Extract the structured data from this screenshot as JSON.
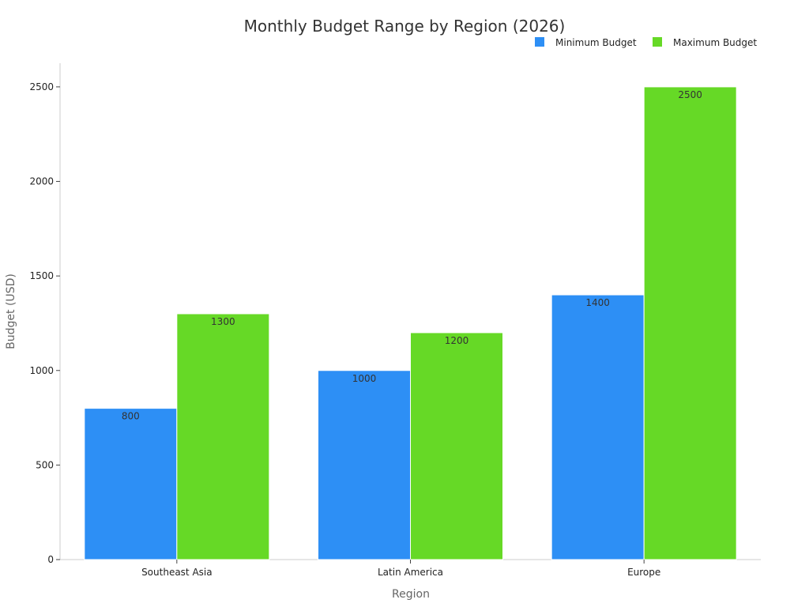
{
  "chart_data": {
    "type": "bar",
    "title": "Monthly Budget Range by Region (2026)",
    "xlabel": "Region",
    "ylabel": "Budget (USD)",
    "categories": [
      "Southeast Asia",
      "Latin America",
      "Europe"
    ],
    "series": [
      {
        "name": "Minimum Budget",
        "values": [
          800,
          1000,
          1400
        ],
        "color": "#2d8ff5"
      },
      {
        "name": "Maximum Budget",
        "values": [
          1300,
          1200,
          2500
        ],
        "color": "#66d926"
      }
    ],
    "ylim": [
      0,
      2625
    ],
    "yticks": [
      0,
      500,
      1000,
      1500,
      2000,
      2500
    ],
    "grid": false,
    "legend": "top-right",
    "data_labels": true
  }
}
